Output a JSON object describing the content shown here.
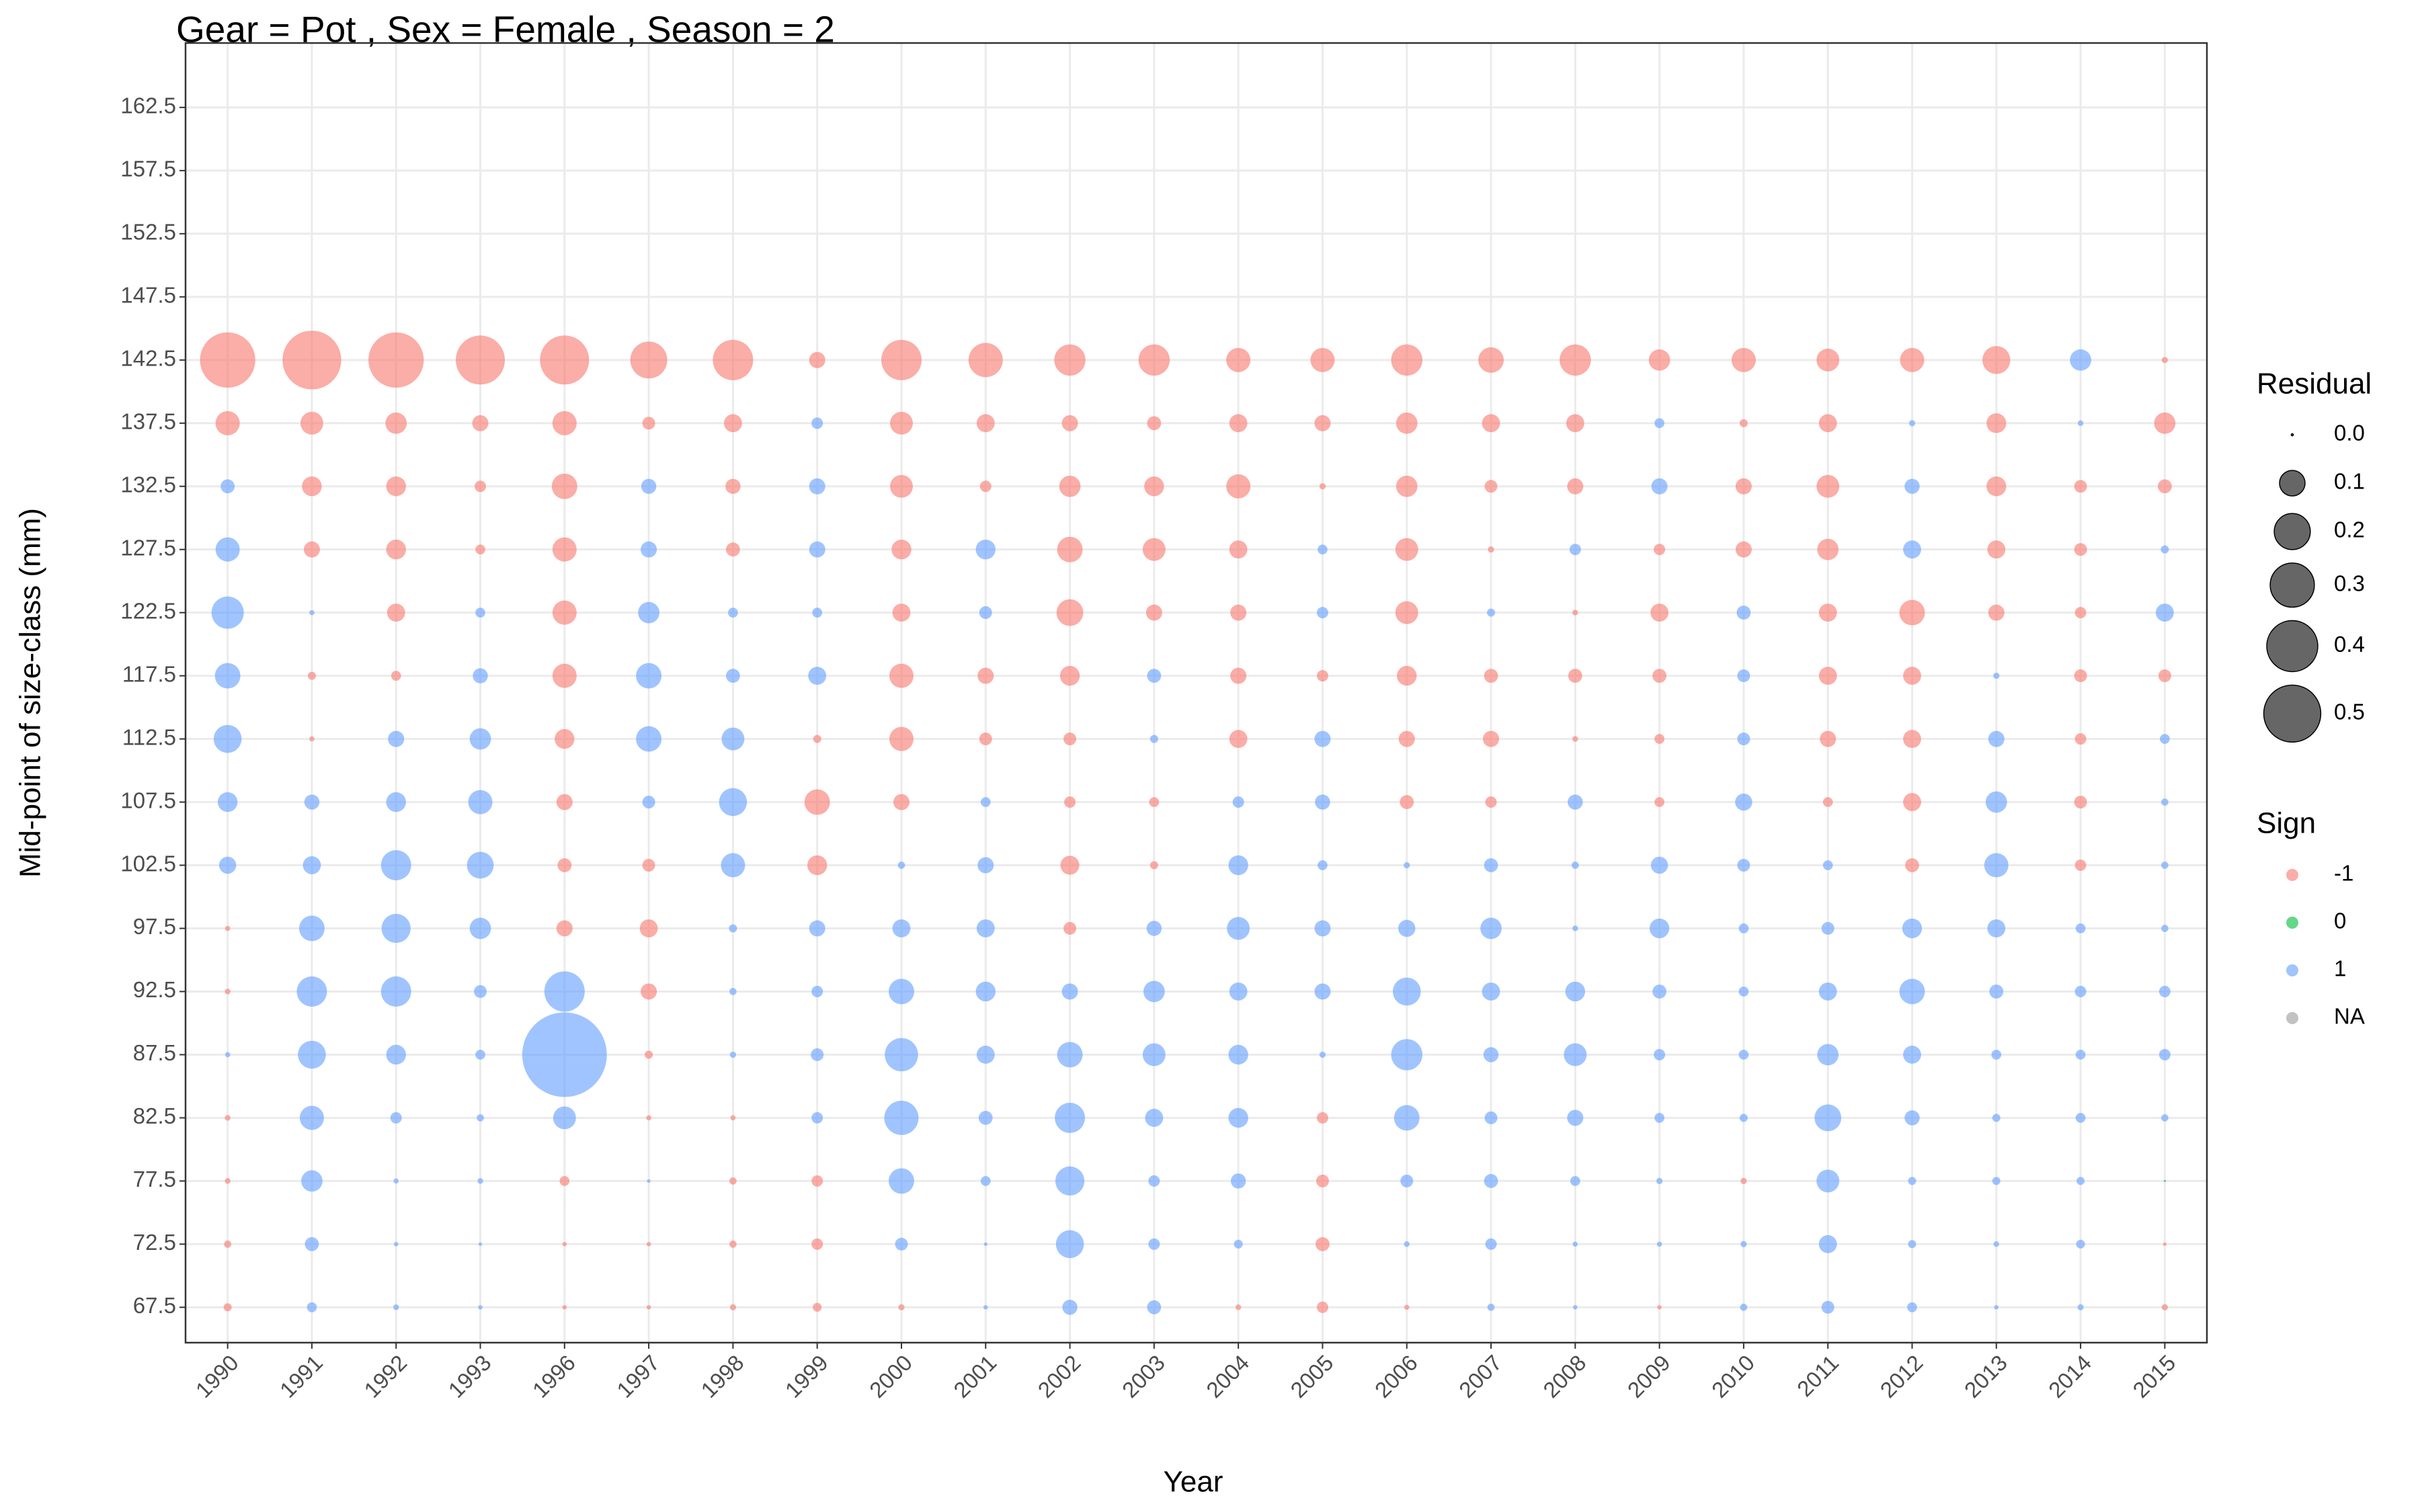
{
  "chart_data": {
    "type": "bubble",
    "title": "Gear = Pot , Sex = Female , Season = 2",
    "x_label": "Year",
    "y_label": "Mid-point of size-class (mm)",
    "categories": [
      "1990",
      "1991",
      "1992",
      "1993",
      "1996",
      "1997",
      "1998",
      "1999",
      "2000",
      "2001",
      "2002",
      "2003",
      "2004",
      "2005",
      "2006",
      "2007",
      "2008",
      "2009",
      "2010",
      "2011",
      "2012",
      "2013",
      "2014",
      "2015"
    ],
    "y_values": [
      142.5,
      137.5,
      132.5,
      127.5,
      122.5,
      117.5,
      112.5,
      107.5,
      102.5,
      97.5,
      92.5,
      87.5,
      82.5,
      77.5,
      72.5,
      67.5
    ],
    "values": [
      [
        -0.47,
        -0.53,
        -0.47,
        -0.37,
        -0.37,
        -0.21,
        -0.25,
        -0.04,
        -0.25,
        -0.18,
        -0.15,
        -0.15,
        -0.09,
        -0.09,
        -0.15,
        -0.1,
        -0.15,
        -0.07,
        -0.09,
        -0.08,
        -0.09,
        -0.12,
        0.07,
        -0.006
      ],
      [
        -0.09,
        -0.08,
        -0.07,
        -0.04,
        -0.09,
        -0.025,
        -0.05,
        0.02,
        -0.08,
        -0.05,
        -0.04,
        -0.03,
        -0.05,
        -0.04,
        -0.07,
        -0.05,
        -0.05,
        0.015,
        -0.01,
        -0.05,
        0.006,
        -0.06,
        0.005,
        -0.07
      ],
      [
        0.03,
        -0.06,
        -0.06,
        -0.02,
        -0.1,
        0.035,
        -0.035,
        0.04,
        -0.08,
        -0.02,
        -0.07,
        -0.06,
        -0.09,
        -0.006,
        -0.07,
        -0.025,
        -0.04,
        0.04,
        -0.04,
        -0.08,
        0.035,
        -0.06,
        -0.025,
        -0.03
      ],
      [
        0.09,
        -0.04,
        -0.06,
        -0.015,
        -0.09,
        0.04,
        -0.03,
        0.04,
        -0.06,
        0.06,
        -0.1,
        -0.08,
        -0.05,
        0.015,
        -0.08,
        -0.006,
        0.02,
        -0.02,
        -0.04,
        -0.07,
        0.05,
        -0.05,
        -0.025,
        0.01
      ],
      [
        0.16,
        0.004,
        -0.05,
        0.015,
        -0.09,
        0.07,
        0.015,
        0.015,
        -0.05,
        0.025,
        -0.11,
        -0.04,
        -0.04,
        0.02,
        -0.08,
        0.01,
        -0.005,
        -0.05,
        0.03,
        -0.05,
        -0.1,
        -0.04,
        -0.02,
        0.05
      ],
      [
        0.1,
        -0.01,
        -0.015,
        0.035,
        -0.09,
        0.1,
        0.03,
        0.05,
        -0.09,
        -0.04,
        -0.06,
        0.03,
        -0.04,
        -0.02,
        -0.06,
        -0.03,
        -0.03,
        -0.03,
        0.025,
        -0.05,
        -0.05,
        0.006,
        -0.025,
        -0.025
      ],
      [
        0.12,
        -0.004,
        0.04,
        0.07,
        -0.06,
        0.1,
        0.08,
        -0.01,
        -0.09,
        -0.025,
        -0.025,
        0.01,
        -0.05,
        0.04,
        -0.04,
        -0.04,
        -0.005,
        -0.015,
        0.025,
        -0.04,
        -0.05,
        0.04,
        -0.02,
        0.015
      ],
      [
        0.06,
        0.035,
        0.06,
        0.09,
        -0.04,
        0.025,
        0.12,
        -0.1,
        -0.04,
        0.015,
        -0.02,
        -0.015,
        0.02,
        0.035,
        -0.03,
        -0.02,
        0.035,
        -0.015,
        0.045,
        -0.015,
        -0.05,
        0.07,
        -0.025,
        0.008
      ],
      [
        0.045,
        0.05,
        0.14,
        0.11,
        -0.03,
        -0.025,
        0.09,
        -0.06,
        0.008,
        0.04,
        -0.055,
        -0.01,
        0.06,
        0.015,
        0.006,
        0.03,
        0.008,
        0.045,
        0.025,
        0.015,
        -0.03,
        0.09,
        -0.02,
        0.008
      ],
      [
        -0.004,
        0.1,
        0.13,
        0.07,
        -0.04,
        -0.05,
        0.01,
        0.04,
        0.05,
        0.05,
        -0.025,
        0.035,
        0.08,
        0.04,
        0.045,
        0.07,
        0.005,
        0.06,
        0.015,
        0.025,
        0.06,
        0.05,
        0.015,
        0.008
      ],
      [
        -0.005,
        0.14,
        0.14,
        0.025,
        0.25,
        -0.04,
        0.008,
        0.02,
        0.1,
        0.06,
        0.04,
        0.07,
        0.05,
        0.04,
        0.12,
        0.05,
        0.06,
        0.03,
        0.015,
        0.05,
        0.1,
        0.03,
        0.02,
        0.02
      ],
      [
        0.004,
        0.12,
        0.06,
        0.015,
        1.1,
        -0.01,
        0.006,
        0.025,
        0.17,
        0.05,
        0.1,
        0.08,
        0.06,
        0.006,
        0.15,
        0.035,
        0.08,
        0.02,
        0.015,
        0.07,
        0.05,
        0.015,
        0.015,
        0.02
      ],
      [
        -0.005,
        0.09,
        0.02,
        0.008,
        0.08,
        -0.004,
        -0.004,
        0.02,
        0.18,
        0.03,
        0.14,
        0.05,
        0.06,
        -0.02,
        0.1,
        0.025,
        0.04,
        0.015,
        0.01,
        0.11,
        0.035,
        0.01,
        0.015,
        0.008
      ],
      [
        -0.005,
        0.07,
        0.004,
        0.005,
        -0.015,
        0.002,
        -0.008,
        -0.02,
        0.1,
        0.015,
        0.13,
        0.02,
        0.035,
        -0.025,
        0.025,
        0.03,
        0.015,
        0.006,
        -0.006,
        0.08,
        0.01,
        0.01,
        0.01,
        0
      ],
      [
        -0.008,
        0.03,
        0.003,
        0.002,
        -0.003,
        -0.003,
        -0.008,
        -0.02,
        0.025,
        0.002,
        0.12,
        0.02,
        0.012,
        -0.03,
        0.005,
        0.02,
        0.004,
        0.004,
        0.006,
        0.05,
        0.01,
        0.005,
        0.012,
        -0.002
      ],
      [
        -0.01,
        0.015,
        0.005,
        0.003,
        -0.003,
        -0.003,
        -0.006,
        -0.012,
        -0.006,
        0.003,
        0.035,
        0.03,
        -0.005,
        -0.02,
        -0.004,
        0.008,
        0.003,
        -0.003,
        0.008,
        0.025,
        0.015,
        0.003,
        0.006,
        -0.006
      ]
    ],
    "ylim": [
      64.7,
      167.6
    ],
    "yticks": [
      67.5,
      72.5,
      77.5,
      82.5,
      87.5,
      92.5,
      97.5,
      102.5,
      107.5,
      112.5,
      117.5,
      122.5,
      127.5,
      132.5,
      137.5,
      142.5,
      147.5,
      152.5,
      157.5,
      162.5
    ],
    "grid": true,
    "size_legend": {
      "title": "Residual",
      "breaks": [
        {
          "value": 0,
          "label": "0.0"
        },
        0.1,
        0.2,
        0.3,
        0.4,
        0.5
      ]
    },
    "sign_legend": {
      "title": "Sign",
      "items": [
        {
          "name": "-1",
          "color": "#f8766d"
        },
        {
          "name": "0",
          "color": "#00ba38"
        },
        {
          "name": "1",
          "color": "#619cff"
        },
        {
          "name": "NA",
          "color": "#999999"
        }
      ]
    }
  }
}
